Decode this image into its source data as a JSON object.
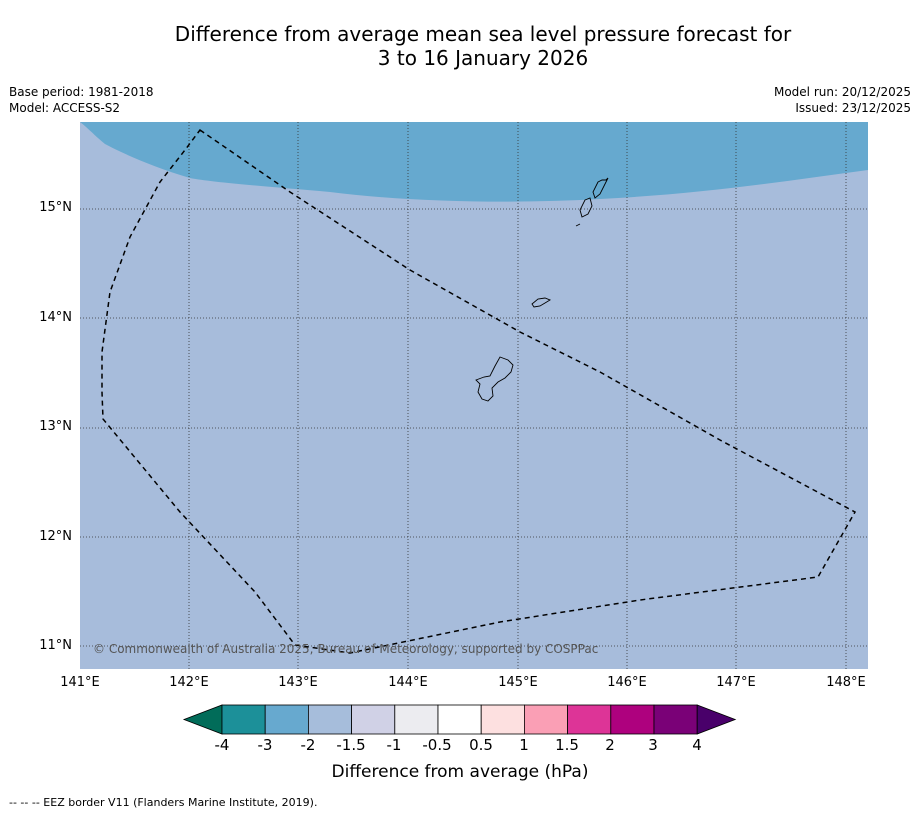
{
  "title_line1": "Difference from average mean sea level pressure forecast for",
  "title_line2": "3 to 16 January 2026",
  "meta": {
    "base_period": "Base period: 1981-2018",
    "model": "Model: ACCESS-S2",
    "model_run": "Model run: 20/12/2025",
    "issued": "Issued: 23/12/2025"
  },
  "map": {
    "lat_labels": [
      "15°N",
      "14°N",
      "13°N",
      "12°N",
      "11°N"
    ],
    "lon_labels": [
      "141°E",
      "142°E",
      "143°E",
      "144°E",
      "145°E",
      "146°E",
      "147°E",
      "148°E"
    ],
    "copyright": "© Commonwealth of Australia 2025, Bureau of Meteorology, supported by COSPPac",
    "colors": {
      "band_-2_-1.5": "#a7bcdb",
      "band_-3_-2": "#66a9cf"
    }
  },
  "colorbar": {
    "title": "Difference from average (hPa)",
    "ticks": [
      "-4",
      "-3",
      "-2",
      "-1.5",
      "-1",
      "-0.5",
      "0.5",
      "1",
      "1.5",
      "2",
      "3",
      "4"
    ],
    "colors": [
      "#016c59",
      "#1c9099",
      "#67a9cf",
      "#a6bddb",
      "#d0d1e6",
      "#ececf0",
      "#ffffff",
      "#fde0e0",
      "#fa9fb5",
      "#dd3497",
      "#ae017e",
      "#7a0177",
      "#49006a"
    ]
  },
  "legend_note": "--  --  -- EEZ border V11 (Flanders Marine Institute, 2019)."
}
